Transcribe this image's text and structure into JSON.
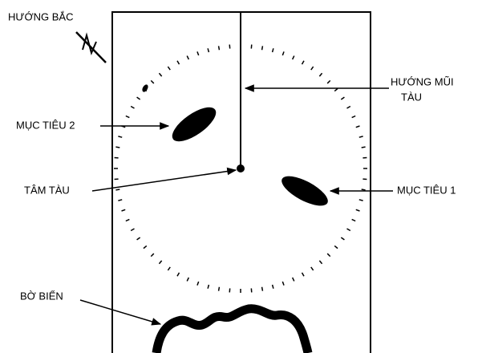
{
  "labels": {
    "north": "HƯỚNG BẮC",
    "heading": [
      "HƯỚNG MŨI",
      "TÀU"
    ],
    "target2": "MỤC TIÊU 2",
    "center": "TÂM TÀU",
    "target1": "MỤC TIÊU 1",
    "coast": "BỜ BIỂN"
  }
}
